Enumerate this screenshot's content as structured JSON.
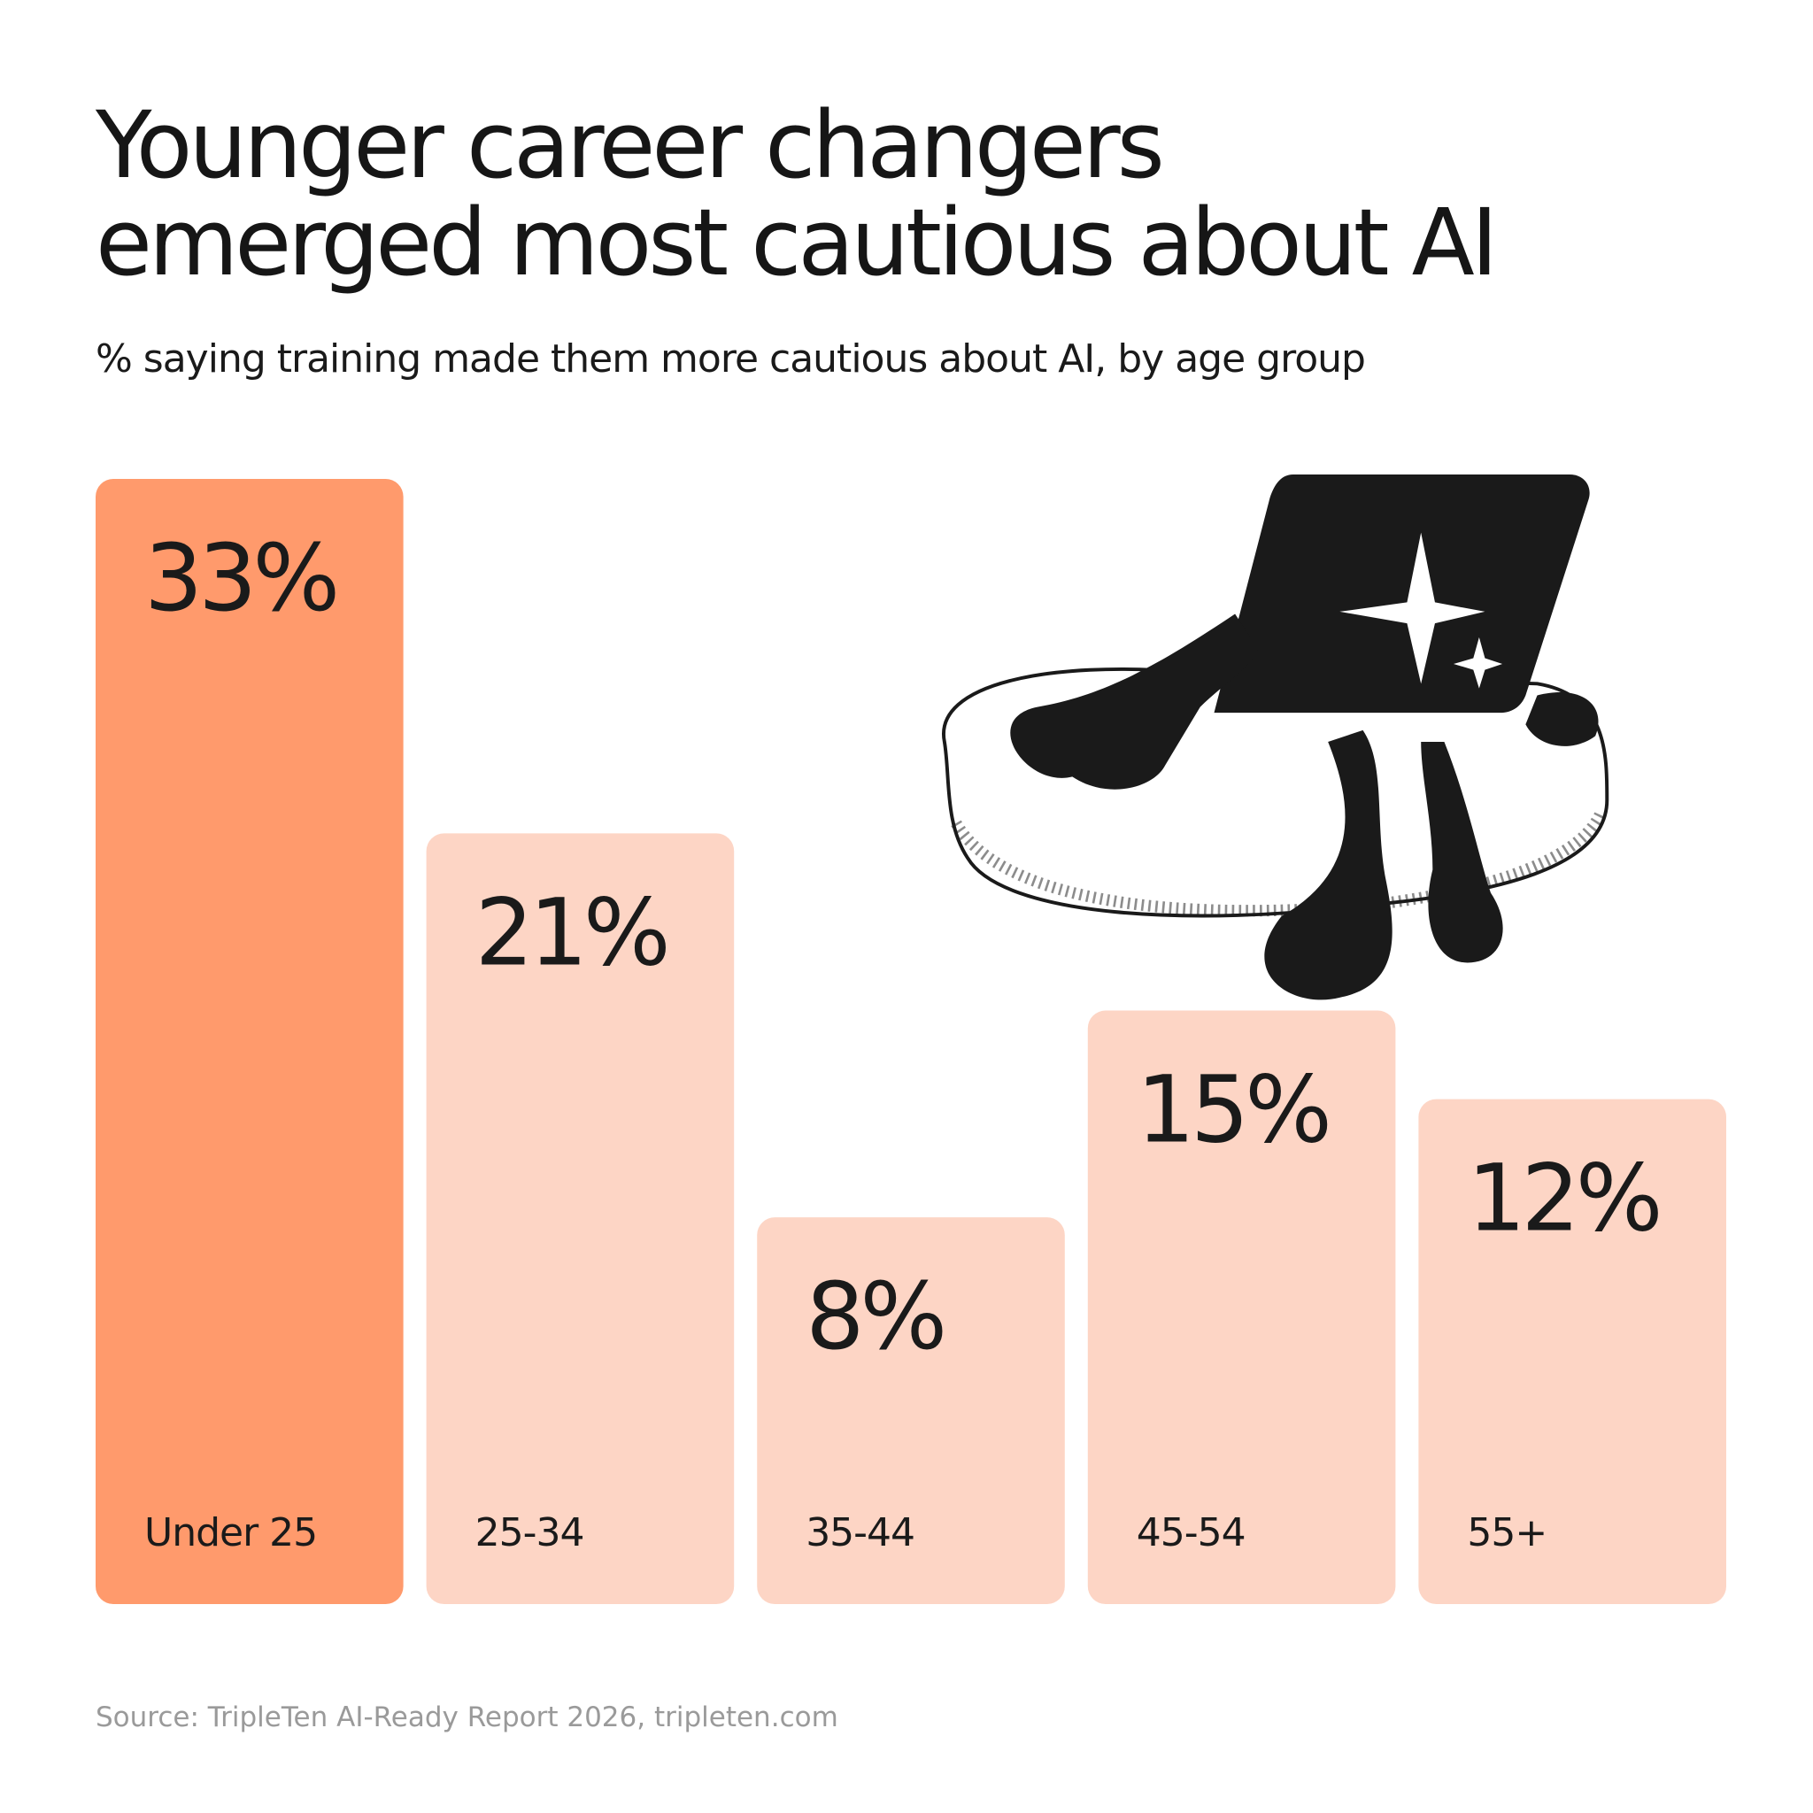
{
  "chart_data": {
    "type": "bar",
    "title": [
      "Younger career changers",
      "emerged most cautious about AI"
    ],
    "subtitle": "% saying training made them more cautious about AI, by age group",
    "categories": [
      "Under 25",
      "25-34",
      "35-44",
      "45-54",
      "55+"
    ],
    "values": [
      33,
      21,
      8,
      15,
      12
    ],
    "value_labels": [
      "33%",
      "21%",
      "8%",
      "15%",
      "12%"
    ],
    "colors": [
      "#ff9a6c",
      "#fdd5c5",
      "#fdd5c5",
      "#fdd5c5",
      "#fdd5c5"
    ],
    "source": "Source: TripleTen AI-Ready Report 2026, tripleten.com"
  }
}
